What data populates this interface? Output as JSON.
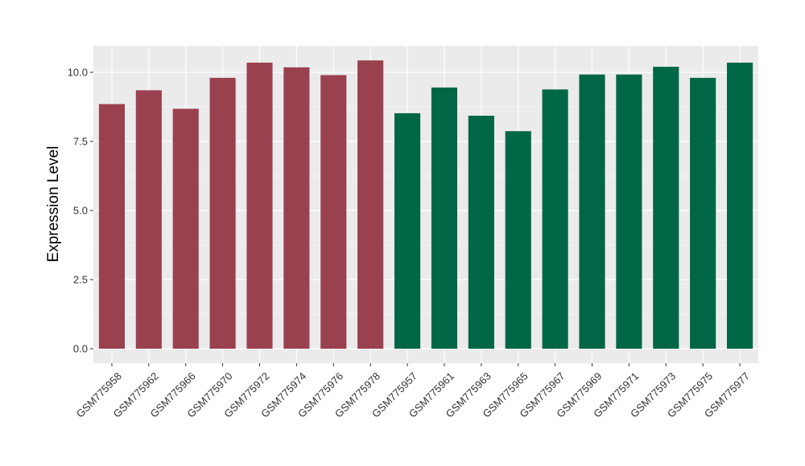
{
  "chart_data": {
    "type": "bar",
    "title": "",
    "xlabel": "",
    "ylabel": "Expression Level",
    "ylim": [
      0,
      11
    ],
    "yticks": [
      0.0,
      2.5,
      5.0,
      7.5,
      10.0
    ],
    "ytick_labels": [
      "0.0",
      "2.5",
      "5.0",
      "7.5",
      "10.0"
    ],
    "grid": true,
    "legend": "none",
    "categories": [
      "GSM775958",
      "GSM775962",
      "GSM775966",
      "GSM775970",
      "GSM775972",
      "GSM775974",
      "GSM775976",
      "GSM775978",
      "GSM775957",
      "GSM775961",
      "GSM775963",
      "GSM775965",
      "GSM775967",
      "GSM775969",
      "GSM775971",
      "GSM775973",
      "GSM775975",
      "GSM775977"
    ],
    "values": [
      8.85,
      9.35,
      8.68,
      9.8,
      10.35,
      10.18,
      9.9,
      10.43,
      8.52,
      9.45,
      8.43,
      7.87,
      9.38,
      9.92,
      9.92,
      10.2,
      9.8,
      10.35
    ],
    "groups": [
      0,
      0,
      0,
      0,
      0,
      0,
      0,
      0,
      1,
      1,
      1,
      1,
      1,
      1,
      1,
      1,
      1,
      1
    ],
    "colors": [
      "#9a4150",
      "#006746"
    ],
    "panel_background": "#ebebeb",
    "grid_color": "#ffffff"
  }
}
